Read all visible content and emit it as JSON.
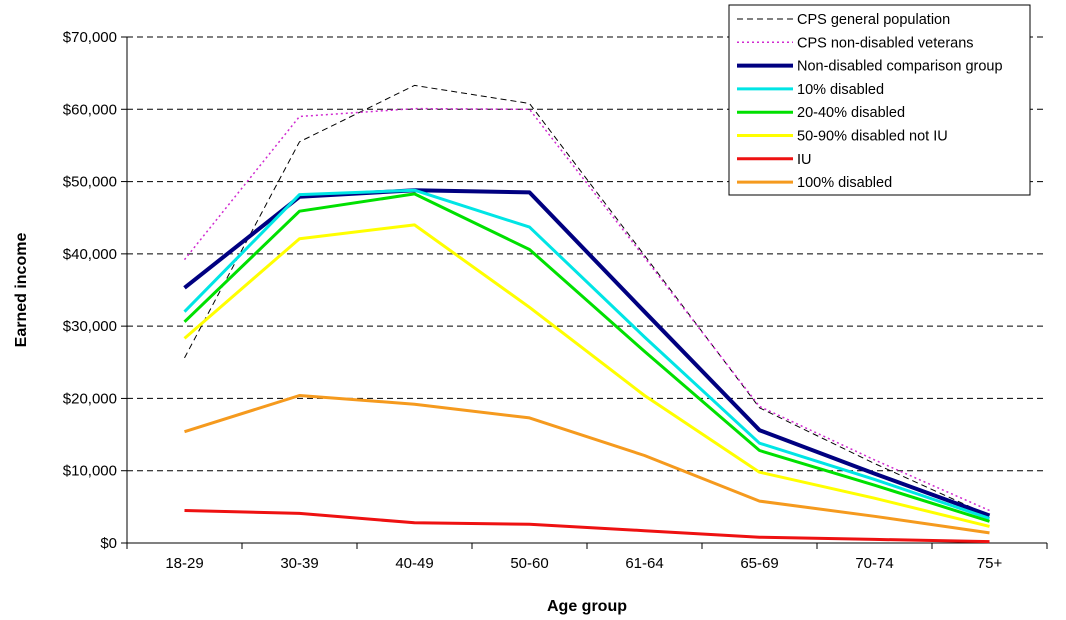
{
  "chart_data": {
    "type": "line",
    "title": "",
    "xlabel": "Age group",
    "ylabel": "Earned income",
    "ylim": [
      0,
      70000
    ],
    "ytick_step": 10000,
    "yticks": [
      "$0",
      "$10,000",
      "$20,000",
      "$30,000",
      "$40,000",
      "$50,000",
      "$60,000",
      "$70,000"
    ],
    "grid": "horizontal dashed",
    "legend_position": "top-right",
    "categories": [
      "18-29",
      "30-39",
      "40-49",
      "50-60",
      "61-64",
      "65-69",
      "70-74",
      "75+"
    ],
    "series": [
      {
        "name": "CPS general population",
        "color": "#000000",
        "style": "dash-thin",
        "values": [
          25600,
          55500,
          63300,
          60800,
          39800,
          18700,
          11000,
          3800
        ]
      },
      {
        "name": "CPS non-disabled veterans",
        "color": "#d02ad0",
        "style": "dot-thin",
        "values": [
          39200,
          59000,
          60100,
          60000,
          39500,
          18900,
          11500,
          4500
        ]
      },
      {
        "name": "Non-disabled comparison group",
        "color": "#000080",
        "style": "solid-thick",
        "values": [
          35300,
          47900,
          48800,
          48500,
          32000,
          15600,
          9600,
          3800
        ]
      },
      {
        "name": "10% disabled",
        "color": "#00e5e5",
        "style": "solid",
        "values": [
          32000,
          48200,
          48800,
          43700,
          28500,
          13800,
          8800,
          3400
        ]
      },
      {
        "name": "20-40% disabled",
        "color": "#00e000",
        "style": "solid",
        "values": [
          30600,
          45900,
          48300,
          40600,
          26500,
          12800,
          8000,
          3000
        ]
      },
      {
        "name": "50-90% disabled not IU",
        "color": "#ffff00",
        "style": "solid",
        "values": [
          28300,
          42100,
          44000,
          32600,
          20400,
          9800,
          6200,
          2300
        ]
      },
      {
        "name": "IU",
        "color": "#ee1111",
        "style": "solid",
        "values": [
          4500,
          4100,
          2800,
          2600,
          1700,
          800,
          500,
          200
        ]
      },
      {
        "name": "100% disabled",
        "color": "#f59a1e",
        "style": "solid",
        "values": [
          15400,
          20400,
          19200,
          17300,
          12100,
          5800,
          3700,
          1400
        ]
      }
    ]
  }
}
